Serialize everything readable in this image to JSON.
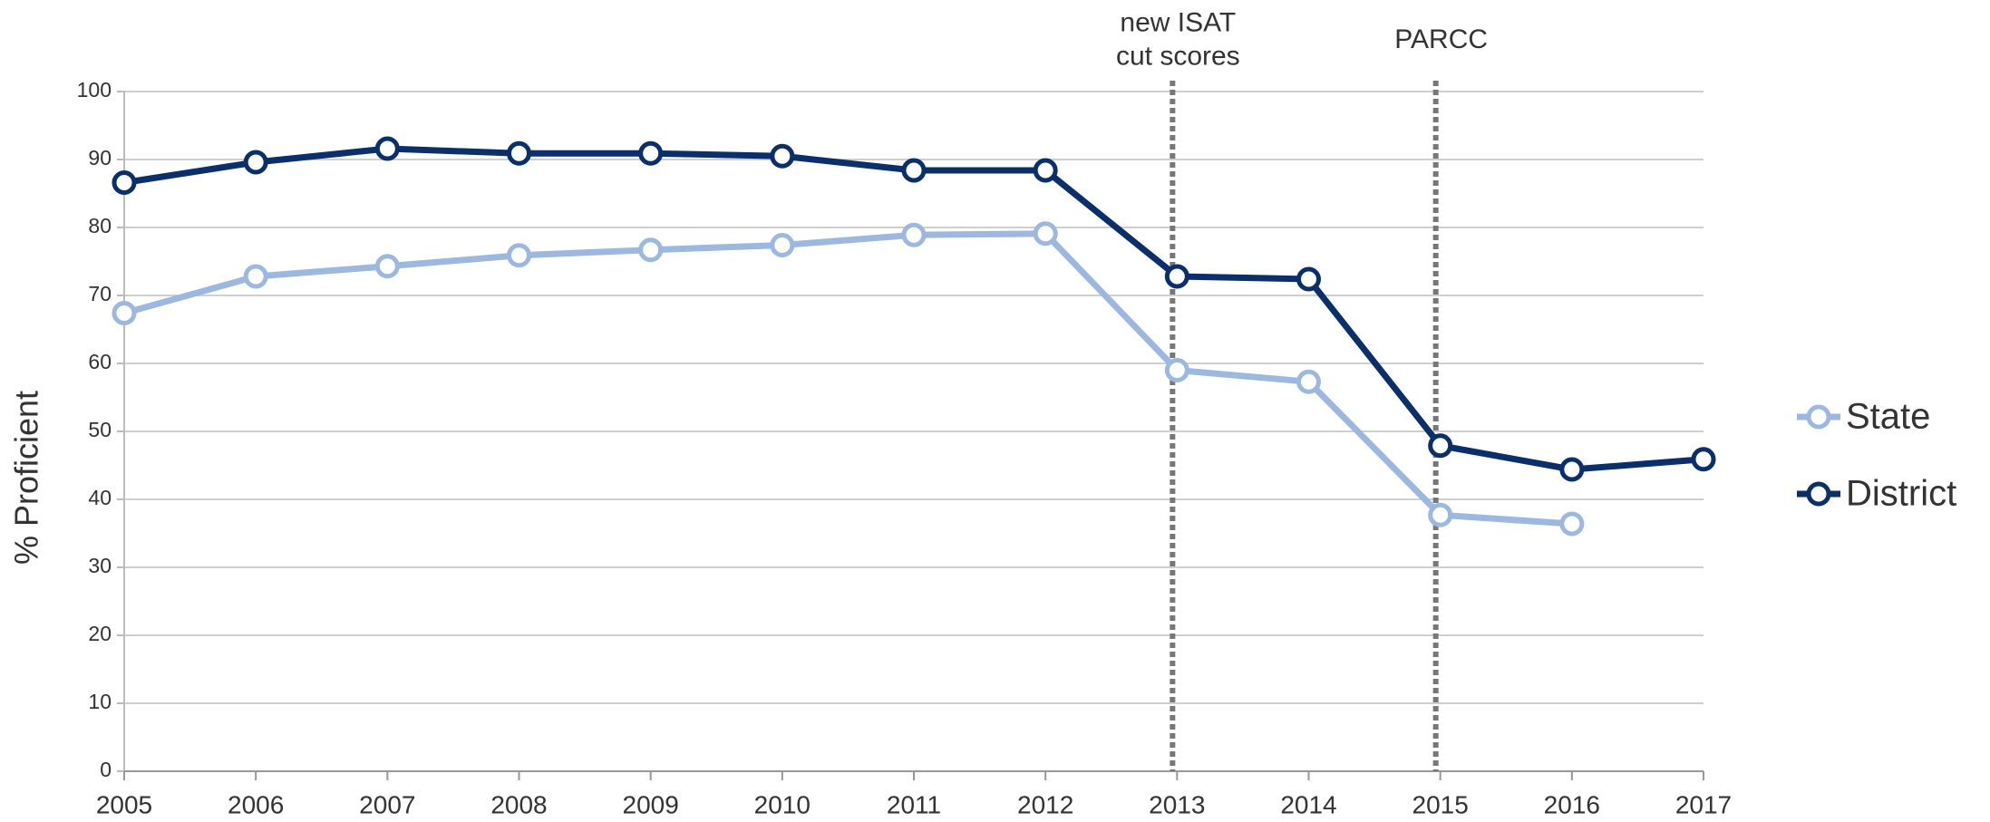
{
  "chart_data": {
    "type": "line",
    "y_label": "% Proficient",
    "x": [
      2005,
      2006,
      2007,
      2008,
      2009,
      2010,
      2011,
      2012,
      2013,
      2014,
      2015,
      2016,
      2017
    ],
    "xlim": [
      2005,
      2017
    ],
    "xticks": [
      2005,
      2006,
      2007,
      2008,
      2009,
      2010,
      2011,
      2012,
      2013,
      2014,
      2015,
      2016,
      2017
    ],
    "ylim": [
      0,
      100
    ],
    "yticks": [
      0,
      10,
      20,
      30,
      40,
      50,
      60,
      70,
      80,
      90,
      100
    ],
    "grid": true,
    "legend": "right",
    "series": [
      {
        "name": "State",
        "color": "#9db8e0",
        "values": [
          67.4,
          72.8,
          74.3,
          75.9,
          76.7,
          77.4,
          78.9,
          79.1,
          59.0,
          57.3,
          37.7,
          36.4,
          null
        ]
      },
      {
        "name": "District",
        "color": "#0b2f6b",
        "values": [
          86.6,
          89.6,
          91.6,
          90.9,
          90.9,
          90.5,
          88.4,
          88.4,
          72.8,
          72.4,
          47.9,
          44.4,
          45.9
        ]
      }
    ],
    "annotations": [
      {
        "x": 2013,
        "lines": [
          "new ISAT",
          "cut scores"
        ]
      },
      {
        "x": 2015,
        "lines": [
          "PARCC"
        ]
      }
    ]
  }
}
